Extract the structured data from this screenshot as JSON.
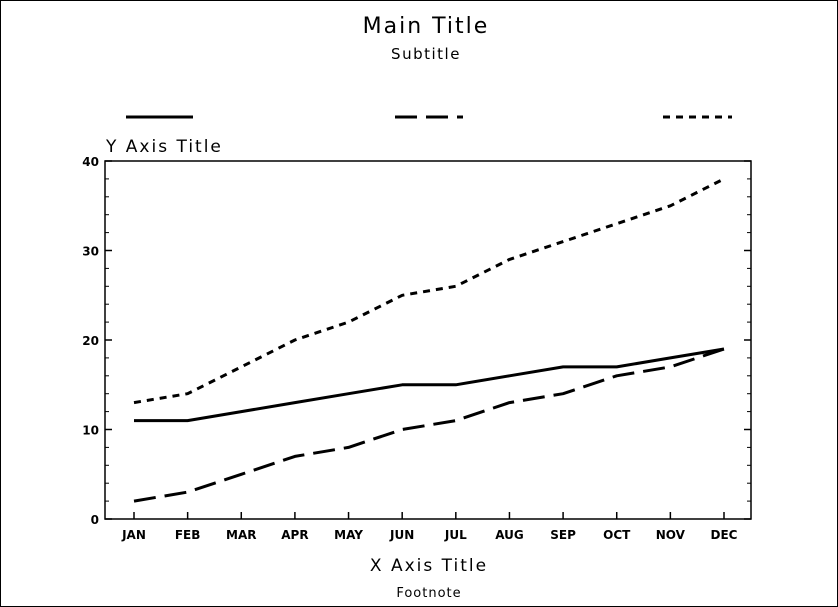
{
  "chart_data": {
    "type": "line",
    "title": "Main Title",
    "subtitle": "Subtitle",
    "xlabel": "X Axis Title",
    "ylabel": "Y Axis Title",
    "footnote": "Footnote",
    "categories": [
      "JAN",
      "FEB",
      "MAR",
      "APR",
      "MAY",
      "JUN",
      "JUL",
      "AUG",
      "SEP",
      "OCT",
      "NOV",
      "DEC"
    ],
    "ylim": [
      0,
      40
    ],
    "yticks": [
      0,
      10,
      20,
      30,
      40
    ],
    "grid": false,
    "legend": "top",
    "series": [
      {
        "style": "solid",
        "values": [
          11,
          11,
          12,
          13,
          14,
          15,
          15,
          16,
          17,
          17,
          18,
          19
        ]
      },
      {
        "style": "dashed",
        "values": [
          2,
          3,
          5,
          7,
          8,
          10,
          11,
          13,
          14,
          16,
          17,
          19
        ]
      },
      {
        "style": "dotted",
        "values": [
          13,
          14,
          17,
          20,
          22,
          25,
          26,
          29,
          31,
          33,
          35,
          38
        ]
      }
    ]
  }
}
